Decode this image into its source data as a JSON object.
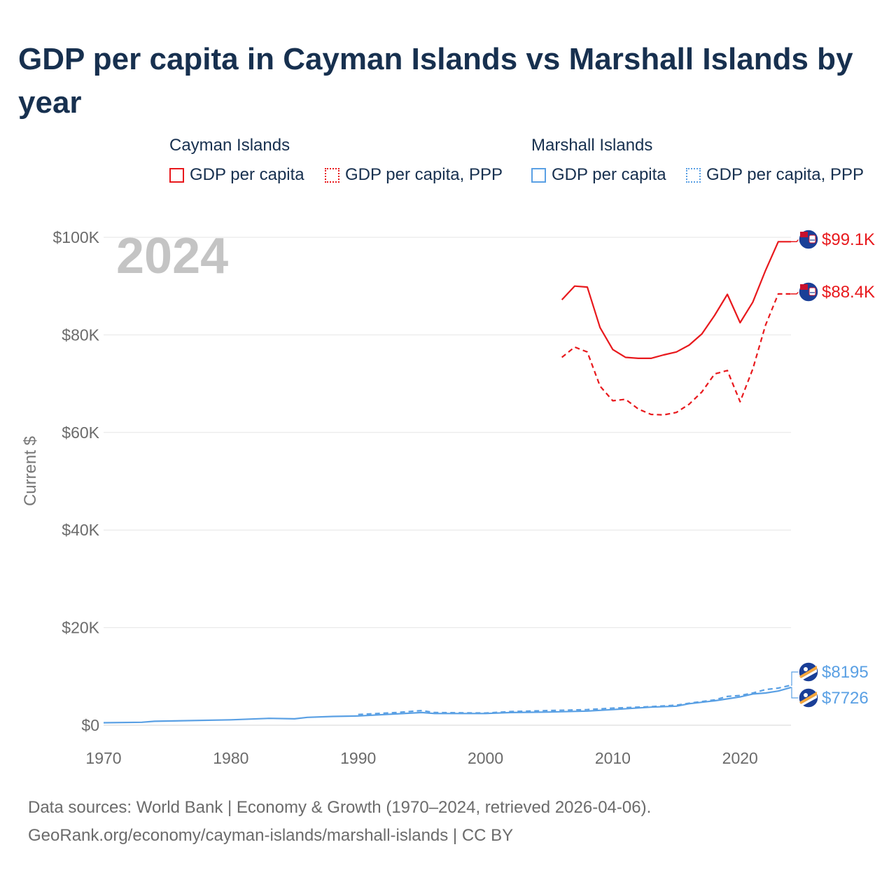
{
  "title": "GDP per capita in Cayman Islands vs Marshall Islands by year",
  "year_label": "2024",
  "legend": {
    "groups": [
      {
        "name": "Cayman Islands",
        "color": "#e8191d",
        "items": [
          "GDP per capita",
          "GDP per capita, PPP"
        ]
      },
      {
        "name": "Marshall Islands",
        "color": "#5aa0e4",
        "items": [
          "GDP per capita",
          "GDP per capita, PPP"
        ]
      }
    ]
  },
  "footer": {
    "line1": "Data sources: World Bank | Economy & Growth (1970–2024, retrieved 2026-04-06).",
    "line2": "GeoRank.org/economy/cayman-islands/marshall-islands | CC BY"
  },
  "chart_data": {
    "type": "line",
    "xlabel": "",
    "ylabel": "Current $",
    "xlim": [
      1970,
      2024
    ],
    "ylim": [
      0,
      100000
    ],
    "x_ticks": [
      1970,
      1980,
      1990,
      2000,
      2010,
      2020
    ],
    "x_tick_labels": [
      "1970",
      "1980",
      "1990",
      "2000",
      "2010",
      "2020"
    ],
    "y_ticks": [
      0,
      20000,
      40000,
      60000,
      80000,
      100000
    ],
    "y_tick_labels": [
      "$0",
      "$20K",
      "$40K",
      "$60K",
      "$80K",
      "$100K"
    ],
    "grid": true,
    "series": [
      {
        "name": "Cayman Islands GDP per capita",
        "color": "#e8191d",
        "dash": "solid",
        "end_label": "$99.1K",
        "x": [
          2006,
          2007,
          2008,
          2009,
          2010,
          2011,
          2012,
          2013,
          2014,
          2015,
          2016,
          2017,
          2018,
          2019,
          2020,
          2021,
          2022,
          2023,
          2024
        ],
        "values": [
          87200,
          90000,
          89800,
          81500,
          77000,
          75400,
          75200,
          75200,
          75900,
          76500,
          77900,
          80200,
          84000,
          88300,
          82500,
          86700,
          93200,
          99100,
          99100
        ]
      },
      {
        "name": "Cayman Islands GDP per capita, PPP",
        "color": "#e8191d",
        "dash": "dashed",
        "end_label": "$88.4K",
        "x": [
          2006,
          2007,
          2008,
          2009,
          2010,
          2011,
          2012,
          2013,
          2014,
          2015,
          2016,
          2017,
          2018,
          2019,
          2020,
          2021,
          2022,
          2023,
          2024
        ],
        "values": [
          75400,
          77500,
          76500,
          69500,
          66500,
          66800,
          64800,
          63700,
          63600,
          64100,
          65800,
          68300,
          72000,
          72700,
          66300,
          73000,
          82000,
          88400,
          88400
        ]
      },
      {
        "name": "Marshall Islands GDP per capita",
        "color": "#5aa0e4",
        "dash": "solid",
        "end_label": "$7726",
        "x": [
          1970,
          1973,
          1974,
          1980,
          1983,
          1985,
          1986,
          1988,
          1990,
          1995,
          1996,
          2000,
          2002,
          2005,
          2008,
          2010,
          2013,
          2015,
          2016,
          2018,
          2019,
          2020,
          2021,
          2022,
          2023,
          2024
        ],
        "values": [
          500,
          600,
          800,
          1100,
          1400,
          1300,
          1600,
          1800,
          1900,
          2600,
          2400,
          2400,
          2600,
          2700,
          2900,
          3200,
          3700,
          3900,
          4400,
          5000,
          5400,
          5800,
          6400,
          6600,
          7000,
          7726
        ]
      },
      {
        "name": "Marshall Islands GDP per capita, PPP",
        "color": "#5aa0e4",
        "dash": "dashed",
        "end_label": "$8195",
        "x": [
          1990,
          1993,
          1995,
          1996,
          2000,
          2002,
          2005,
          2008,
          2010,
          2013,
          2015,
          2016,
          2018,
          2019,
          2020,
          2021,
          2022,
          2023,
          2024
        ],
        "values": [
          2200,
          2600,
          3000,
          2600,
          2500,
          2800,
          3000,
          3200,
          3500,
          3800,
          4100,
          4500,
          5200,
          5900,
          6100,
          6600,
          7300,
          7600,
          8195
        ]
      }
    ]
  }
}
